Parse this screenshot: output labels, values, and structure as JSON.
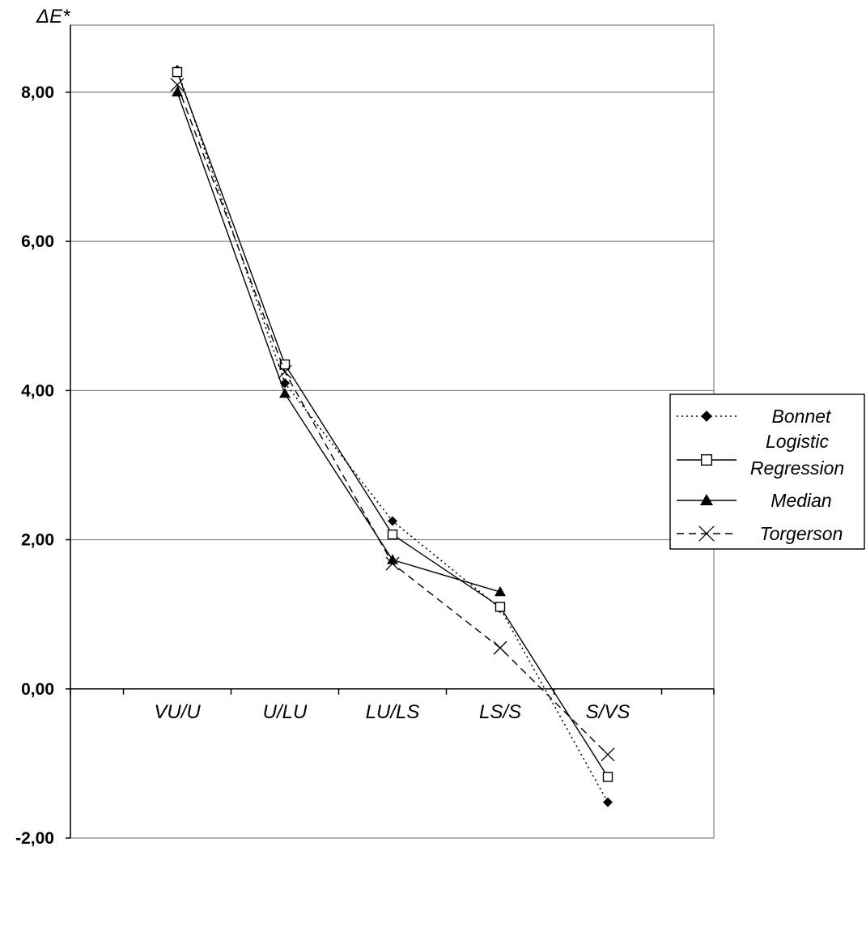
{
  "chart_data": {
    "type": "line",
    "ylabel": "ΔE*",
    "xlabel": "",
    "title": "",
    "categories": [
      "VU/U",
      "U/LU",
      "LU/LS",
      "LS/S",
      "S/VS"
    ],
    "ylim": [
      -2,
      8
    ],
    "y_ticks": [
      "-2,00",
      "0,00",
      "2,00",
      "4,00",
      "6,00",
      "8,00"
    ],
    "grid": true,
    "legend_position": "right",
    "series": [
      {
        "name": "Bonnet",
        "marker": "diamond",
        "line": "dotted",
        "values": [
          8.3,
          4.1,
          2.25,
          1.08,
          -1.52
        ]
      },
      {
        "name": "Logistic Regression",
        "legend_lines": [
          "Logistic",
          "Regression"
        ],
        "marker": "open-square",
        "line": "solid",
        "values": [
          8.27,
          4.35,
          2.07,
          1.1,
          -1.18
        ]
      },
      {
        "name": "Median",
        "marker": "triangle",
        "line": "solid",
        "values": [
          8.0,
          3.96,
          1.73,
          1.3,
          null
        ]
      },
      {
        "name": "Torgerson",
        "marker": "x",
        "line": "dashed",
        "values": [
          8.1,
          4.25,
          1.68,
          0.55,
          -0.88
        ]
      }
    ]
  }
}
